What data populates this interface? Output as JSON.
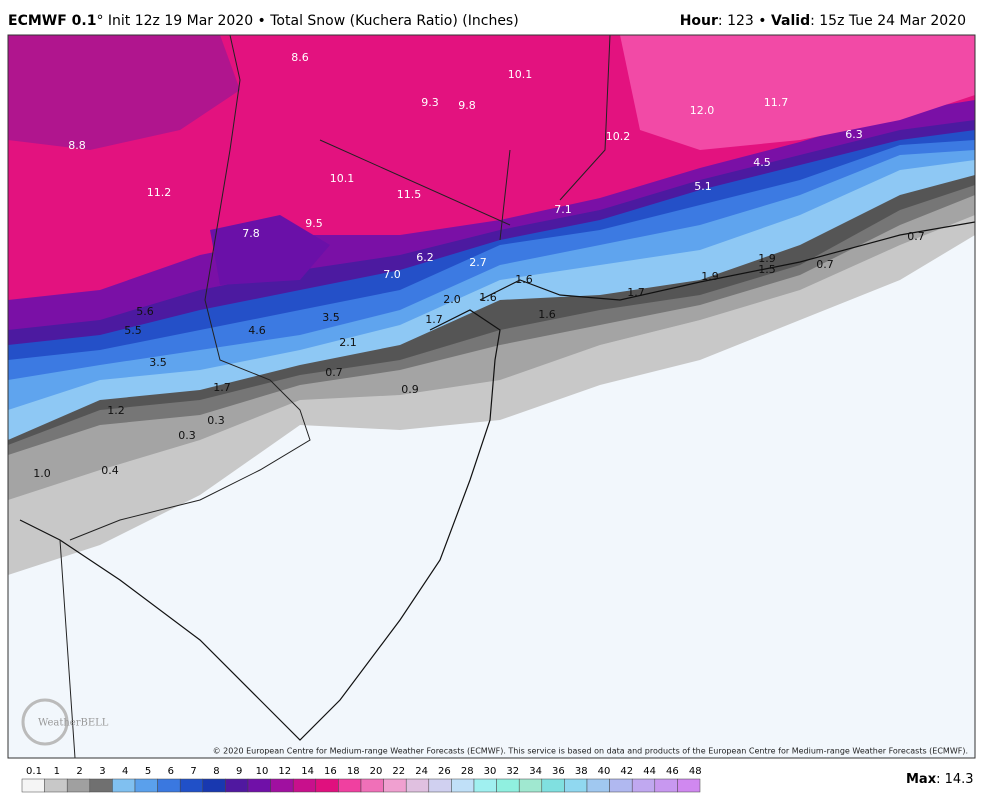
{
  "header": {
    "model": "ECMWF 0.1",
    "init": "° Init 12z 19 Mar 2020 • Total Snow (Kuchera Ratio) (Inches)",
    "hour_label": "Hour",
    "hour": ": 123 • ",
    "valid_label": "Valid",
    "valid": ": 15z Tue 24 Mar 2020"
  },
  "map": {
    "labels": [
      "8.6",
      "10.1",
      "9.3",
      "9.8",
      "8.8",
      "10.2",
      "12.0",
      "11.7",
      "6.3",
      "10.1",
      "11.2",
      "11.5",
      "4.5",
      "5.1",
      "7.1",
      "7.8",
      "9.5",
      "6.2",
      "2.7",
      "7.0",
      "1.6",
      "1.9",
      "1.5",
      "0.7",
      "0.7",
      "1.9",
      "1.7",
      "2.0",
      "1.6",
      "1.6",
      "1.7",
      "5.6",
      "5.5",
      "3.5",
      "4.6",
      "2.1",
      "3.5",
      "0.7",
      "0.9",
      "1.7",
      "1.2",
      "0.3",
      "0.3",
      "1.0",
      "0.4"
    ],
    "copyright": "© 2020 European Centre for Medium-range Weather Forecasts (ECMWF). This service is based on data and products of the European Centre for Medium-range Weather Forecasts (ECMWF).",
    "logo": "WeatherBELL"
  },
  "legend": {
    "ticks": [
      "0.1",
      "1",
      "2",
      "3",
      "4",
      "5",
      "6",
      "7",
      "8",
      "9",
      "10",
      "12",
      "14",
      "16",
      "18",
      "20",
      "22",
      "24",
      "26",
      "28",
      "30",
      "32",
      "34",
      "36",
      "38",
      "40",
      "42",
      "44",
      "46",
      "48"
    ],
    "max_label": "Max",
    "max": ": 14.3"
  }
}
